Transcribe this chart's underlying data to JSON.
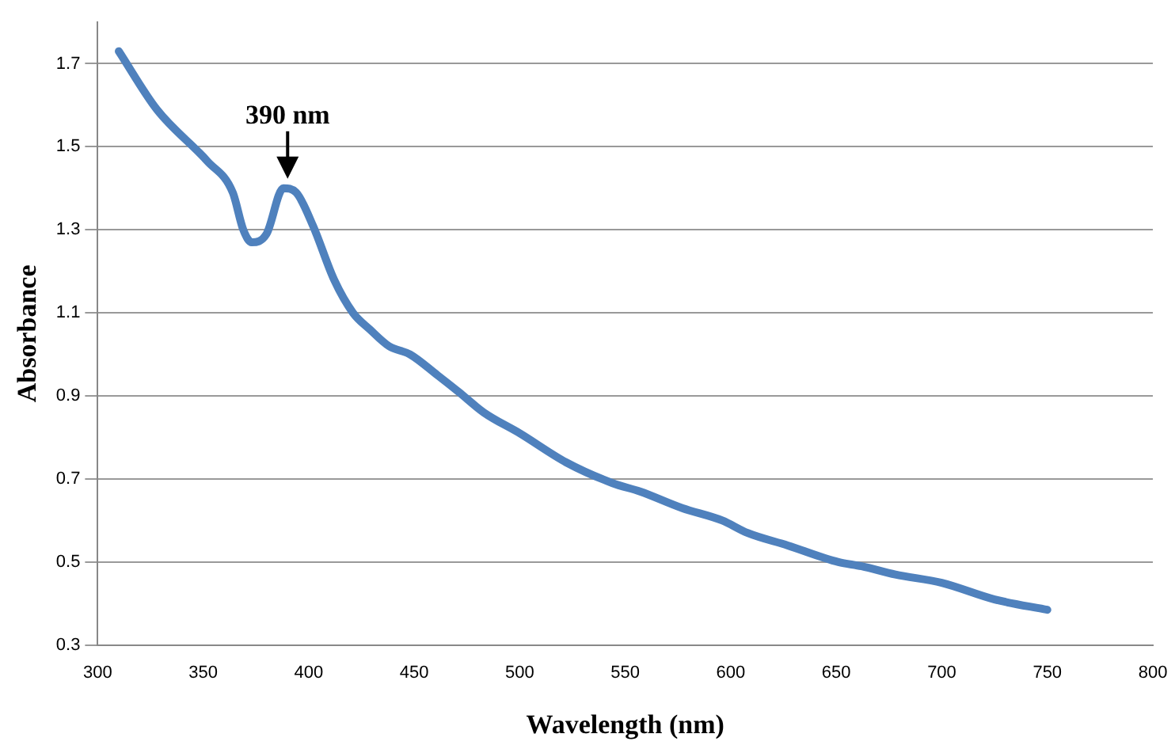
{
  "chart_data": {
    "type": "line",
    "xlabel": "Wavelength (nm)",
    "ylabel": "Absorbance",
    "xlim": [
      300,
      800
    ],
    "xticks": [
      300,
      350,
      400,
      450,
      500,
      550,
      600,
      650,
      700,
      750,
      800
    ],
    "ylim": [
      0.3,
      1.8
    ],
    "yticks": [
      0.3,
      0.5,
      0.7,
      0.9,
      1.1,
      1.3,
      1.5,
      1.7
    ],
    "grid": "y",
    "legend": false,
    "marker": "none",
    "line_style": "solid",
    "annotations": [
      {
        "text": "390 nm",
        "x": 390,
        "y": 1.4
      }
    ],
    "series": [
      {
        "color": "#4f81bd",
        "x": [
          310,
          328,
          352,
          364,
          369,
          373,
          380,
          388,
          394,
          402,
          412,
          421,
          429,
          438,
          448,
          461,
          471,
          483,
          500,
          522,
          544,
          557,
          577,
          596,
          608,
          627,
          651,
          662,
          678,
          700,
          725,
          750
        ],
        "values": [
          1.73,
          1.59,
          1.465,
          1.39,
          1.3,
          1.27,
          1.29,
          1.4,
          1.39,
          1.31,
          1.18,
          1.1,
          1.06,
          1.02,
          1.0,
          0.95,
          0.91,
          0.86,
          0.81,
          0.74,
          0.69,
          0.67,
          0.63,
          0.6,
          0.57,
          0.54,
          0.5,
          0.49,
          0.47,
          0.45,
          0.41,
          0.385
        ]
      }
    ]
  }
}
